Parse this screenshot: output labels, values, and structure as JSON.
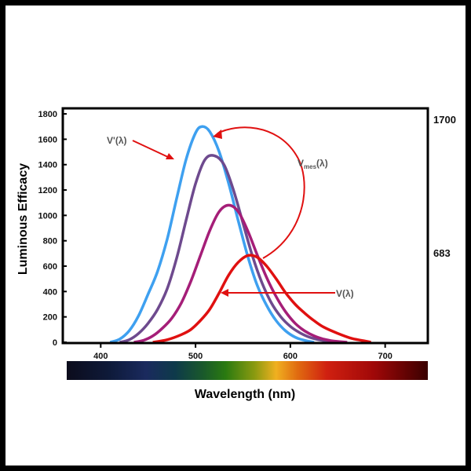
{
  "chart_data": {
    "type": "line",
    "title": "",
    "xlabel": "Wavelength (nm)",
    "ylabel": "Luminous Efficacy",
    "xlim": [
      360,
      745
    ],
    "ylim": [
      0,
      1850
    ],
    "x_ticks": [
      "400",
      "500",
      "600",
      "700"
    ],
    "y_ticks": [
      "0",
      "200",
      "400",
      "600",
      "800",
      "1000",
      "1200",
      "1400",
      "1600",
      "1800"
    ],
    "right_labels": [
      "1700",
      "683"
    ],
    "grid": false,
    "annotations": {
      "v_prime": "V'(λ)",
      "v_mes_main": "V",
      "v_mes_sub": "mes",
      "v_mes_tail": "(λ)",
      "v_photopic": "V(λ)"
    },
    "series": [
      {
        "color": "#3ea0f0",
        "x": [
          410,
          420,
          430,
          440,
          450,
          460,
          470,
          480,
          490,
          500,
          507,
          515,
          525,
          535,
          545,
          555,
          565,
          575,
          585,
          595,
          605,
          615,
          625
        ],
        "y": [
          0,
          25,
          90,
          210,
          380,
          560,
          810,
          1130,
          1440,
          1650,
          1700,
          1660,
          1500,
          1250,
          960,
          680,
          450,
          290,
          170,
          90,
          40,
          15,
          0
        ]
      },
      {
        "color": "#6e4a8e",
        "x": [
          420,
          430,
          440,
          450,
          460,
          470,
          480,
          490,
          500,
          510,
          520,
          530,
          540,
          550,
          560,
          570,
          580,
          590,
          600,
          610,
          620,
          630,
          640,
          650
        ],
        "y": [
          0,
          20,
          70,
          150,
          260,
          420,
          660,
          960,
          1250,
          1440,
          1470,
          1400,
          1200,
          940,
          680,
          470,
          310,
          200,
          125,
          75,
          40,
          20,
          8,
          0
        ]
      },
      {
        "color": "#a51e78",
        "x": [
          435,
          445,
          455,
          465,
          475,
          485,
          495,
          505,
          515,
          525,
          535,
          545,
          555,
          565,
          575,
          585,
          595,
          605,
          615,
          625,
          635,
          645,
          660
        ],
        "y": [
          0,
          15,
          50,
          110,
          190,
          310,
          480,
          680,
          880,
          1030,
          1080,
          1030,
          880,
          690,
          510,
          360,
          240,
          150,
          90,
          50,
          25,
          10,
          0
        ]
      },
      {
        "color": "#e01010",
        "x": [
          455,
          470,
          485,
          495,
          505,
          515,
          525,
          535,
          545,
          555,
          565,
          575,
          585,
          595,
          605,
          615,
          625,
          635,
          650,
          665,
          680,
          685
        ],
        "y": [
          0,
          20,
          60,
          100,
          170,
          260,
          390,
          530,
          630,
          683,
          670,
          600,
          500,
          390,
          300,
          230,
          170,
          120,
          70,
          30,
          8,
          0
        ]
      }
    ]
  }
}
